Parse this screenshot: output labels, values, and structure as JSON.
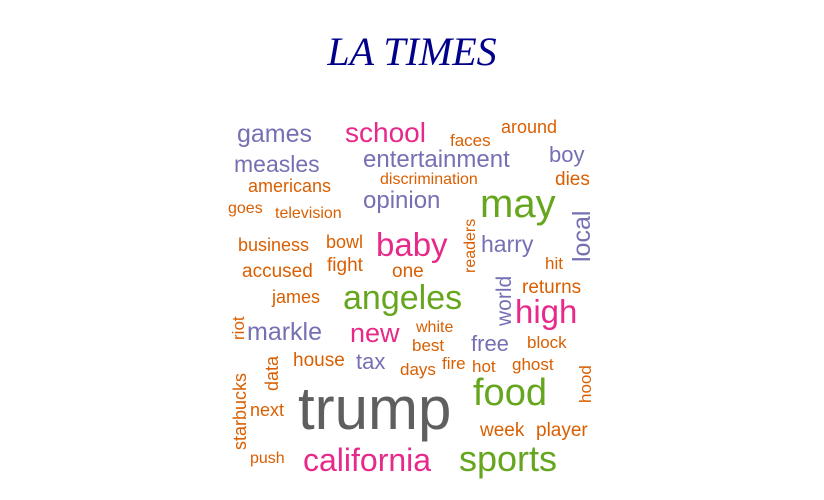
{
  "title": "LA TIMES",
  "colors": {
    "title": "#00008b",
    "gray": "#5f5f5f",
    "purple": "#7570b3",
    "pink": "#e7298a",
    "green": "#66a61e",
    "orange": "#d95f02"
  },
  "words": [
    {
      "text": "trump"
    },
    {
      "text": "food"
    },
    {
      "text": "sports"
    },
    {
      "text": "california"
    },
    {
      "text": "angeles"
    },
    {
      "text": "may"
    },
    {
      "text": "high"
    },
    {
      "text": "baby"
    },
    {
      "text": "new"
    },
    {
      "text": "school"
    },
    {
      "text": "entertainment"
    },
    {
      "text": "games"
    },
    {
      "text": "measles"
    },
    {
      "text": "opinion"
    },
    {
      "text": "markle"
    },
    {
      "text": "harry"
    },
    {
      "text": "local"
    },
    {
      "text": "world"
    },
    {
      "text": "boy"
    },
    {
      "text": "free"
    },
    {
      "text": "tax"
    },
    {
      "text": "around"
    },
    {
      "text": "faces"
    },
    {
      "text": "americans"
    },
    {
      "text": "discrimination"
    },
    {
      "text": "dies"
    },
    {
      "text": "goes"
    },
    {
      "text": "television"
    },
    {
      "text": "readers"
    },
    {
      "text": "business"
    },
    {
      "text": "bowl"
    },
    {
      "text": "accused"
    },
    {
      "text": "fight"
    },
    {
      "text": "one"
    },
    {
      "text": "hit"
    },
    {
      "text": "returns"
    },
    {
      "text": "james"
    },
    {
      "text": "riot"
    },
    {
      "text": "white"
    },
    {
      "text": "best"
    },
    {
      "text": "block"
    },
    {
      "text": "house"
    },
    {
      "text": "data"
    },
    {
      "text": "days"
    },
    {
      "text": "fire"
    },
    {
      "text": "hot"
    },
    {
      "text": "ghost"
    },
    {
      "text": "hood"
    },
    {
      "text": "starbucks"
    },
    {
      "text": "next"
    },
    {
      "text": "week"
    },
    {
      "text": "player"
    },
    {
      "text": "push"
    }
  ]
}
